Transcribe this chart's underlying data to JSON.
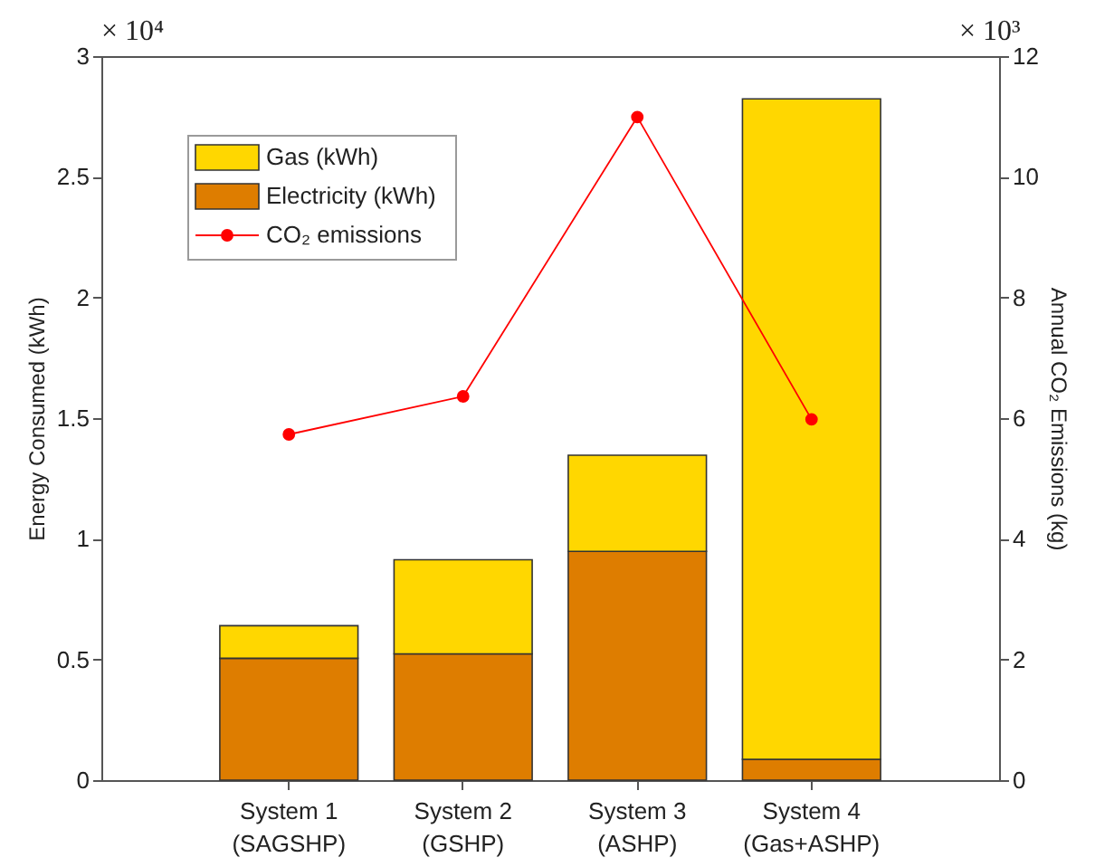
{
  "chart_data": {
    "type": "bar",
    "stacked": true,
    "categories": [
      "System 1\n(SAGSHP)",
      "System 2\n(GSHP)",
      "System 3\n(ASHP)",
      "System 4\n(Gas+ASHP)"
    ],
    "series": [
      {
        "name": "Electricity (kWh)",
        "color": "#de7d00",
        "values": [
          0.505,
          0.523,
          0.948,
          0.086
        ]
      },
      {
        "name": "Gas (kWh)",
        "color": "#ffd700",
        "values": [
          0.135,
          0.39,
          0.398,
          2.737
        ]
      },
      {
        "name": "CO₂ emissions",
        "type": "line",
        "axis": "y2",
        "color": "#ff0000",
        "values": [
          5.73,
          6.36,
          10.99,
          5.98
        ]
      }
    ],
    "ylabel": "Energy Consumed (kWh)",
    "y2label": "Annual CO₂ Emissions (kg)",
    "ylim": [
      0,
      3
    ],
    "yticks": [
      0,
      0.5,
      1,
      1.5,
      2,
      2.5,
      3
    ],
    "y2lim": [
      0,
      12
    ],
    "y2ticks": [
      0,
      2,
      4,
      6,
      8,
      10,
      12
    ],
    "annotations": [
      "× 10⁴",
      "× 10³"
    ],
    "legend": "top left",
    "marker": "circle",
    "line_style": "solid"
  }
}
